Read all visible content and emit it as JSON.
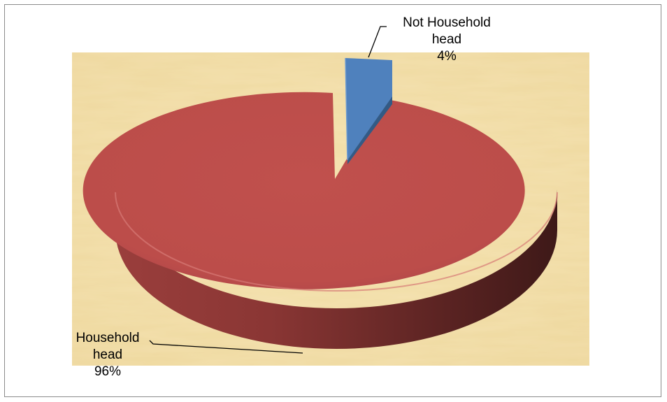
{
  "chart_data": {
    "type": "pie",
    "style": "3d-exploded",
    "title": "",
    "slices": [
      {
        "label_lines": [
          "Not Household",
          "head"
        ],
        "percent_label": "4%",
        "value": 4,
        "color": "#4f81bd"
      },
      {
        "label_lines": [
          "Household",
          "head"
        ],
        "percent_label": "96%",
        "value": 96,
        "color": "#c0504d"
      }
    ],
    "background": "parchment-texture",
    "background_color": "#f2dfa8"
  }
}
